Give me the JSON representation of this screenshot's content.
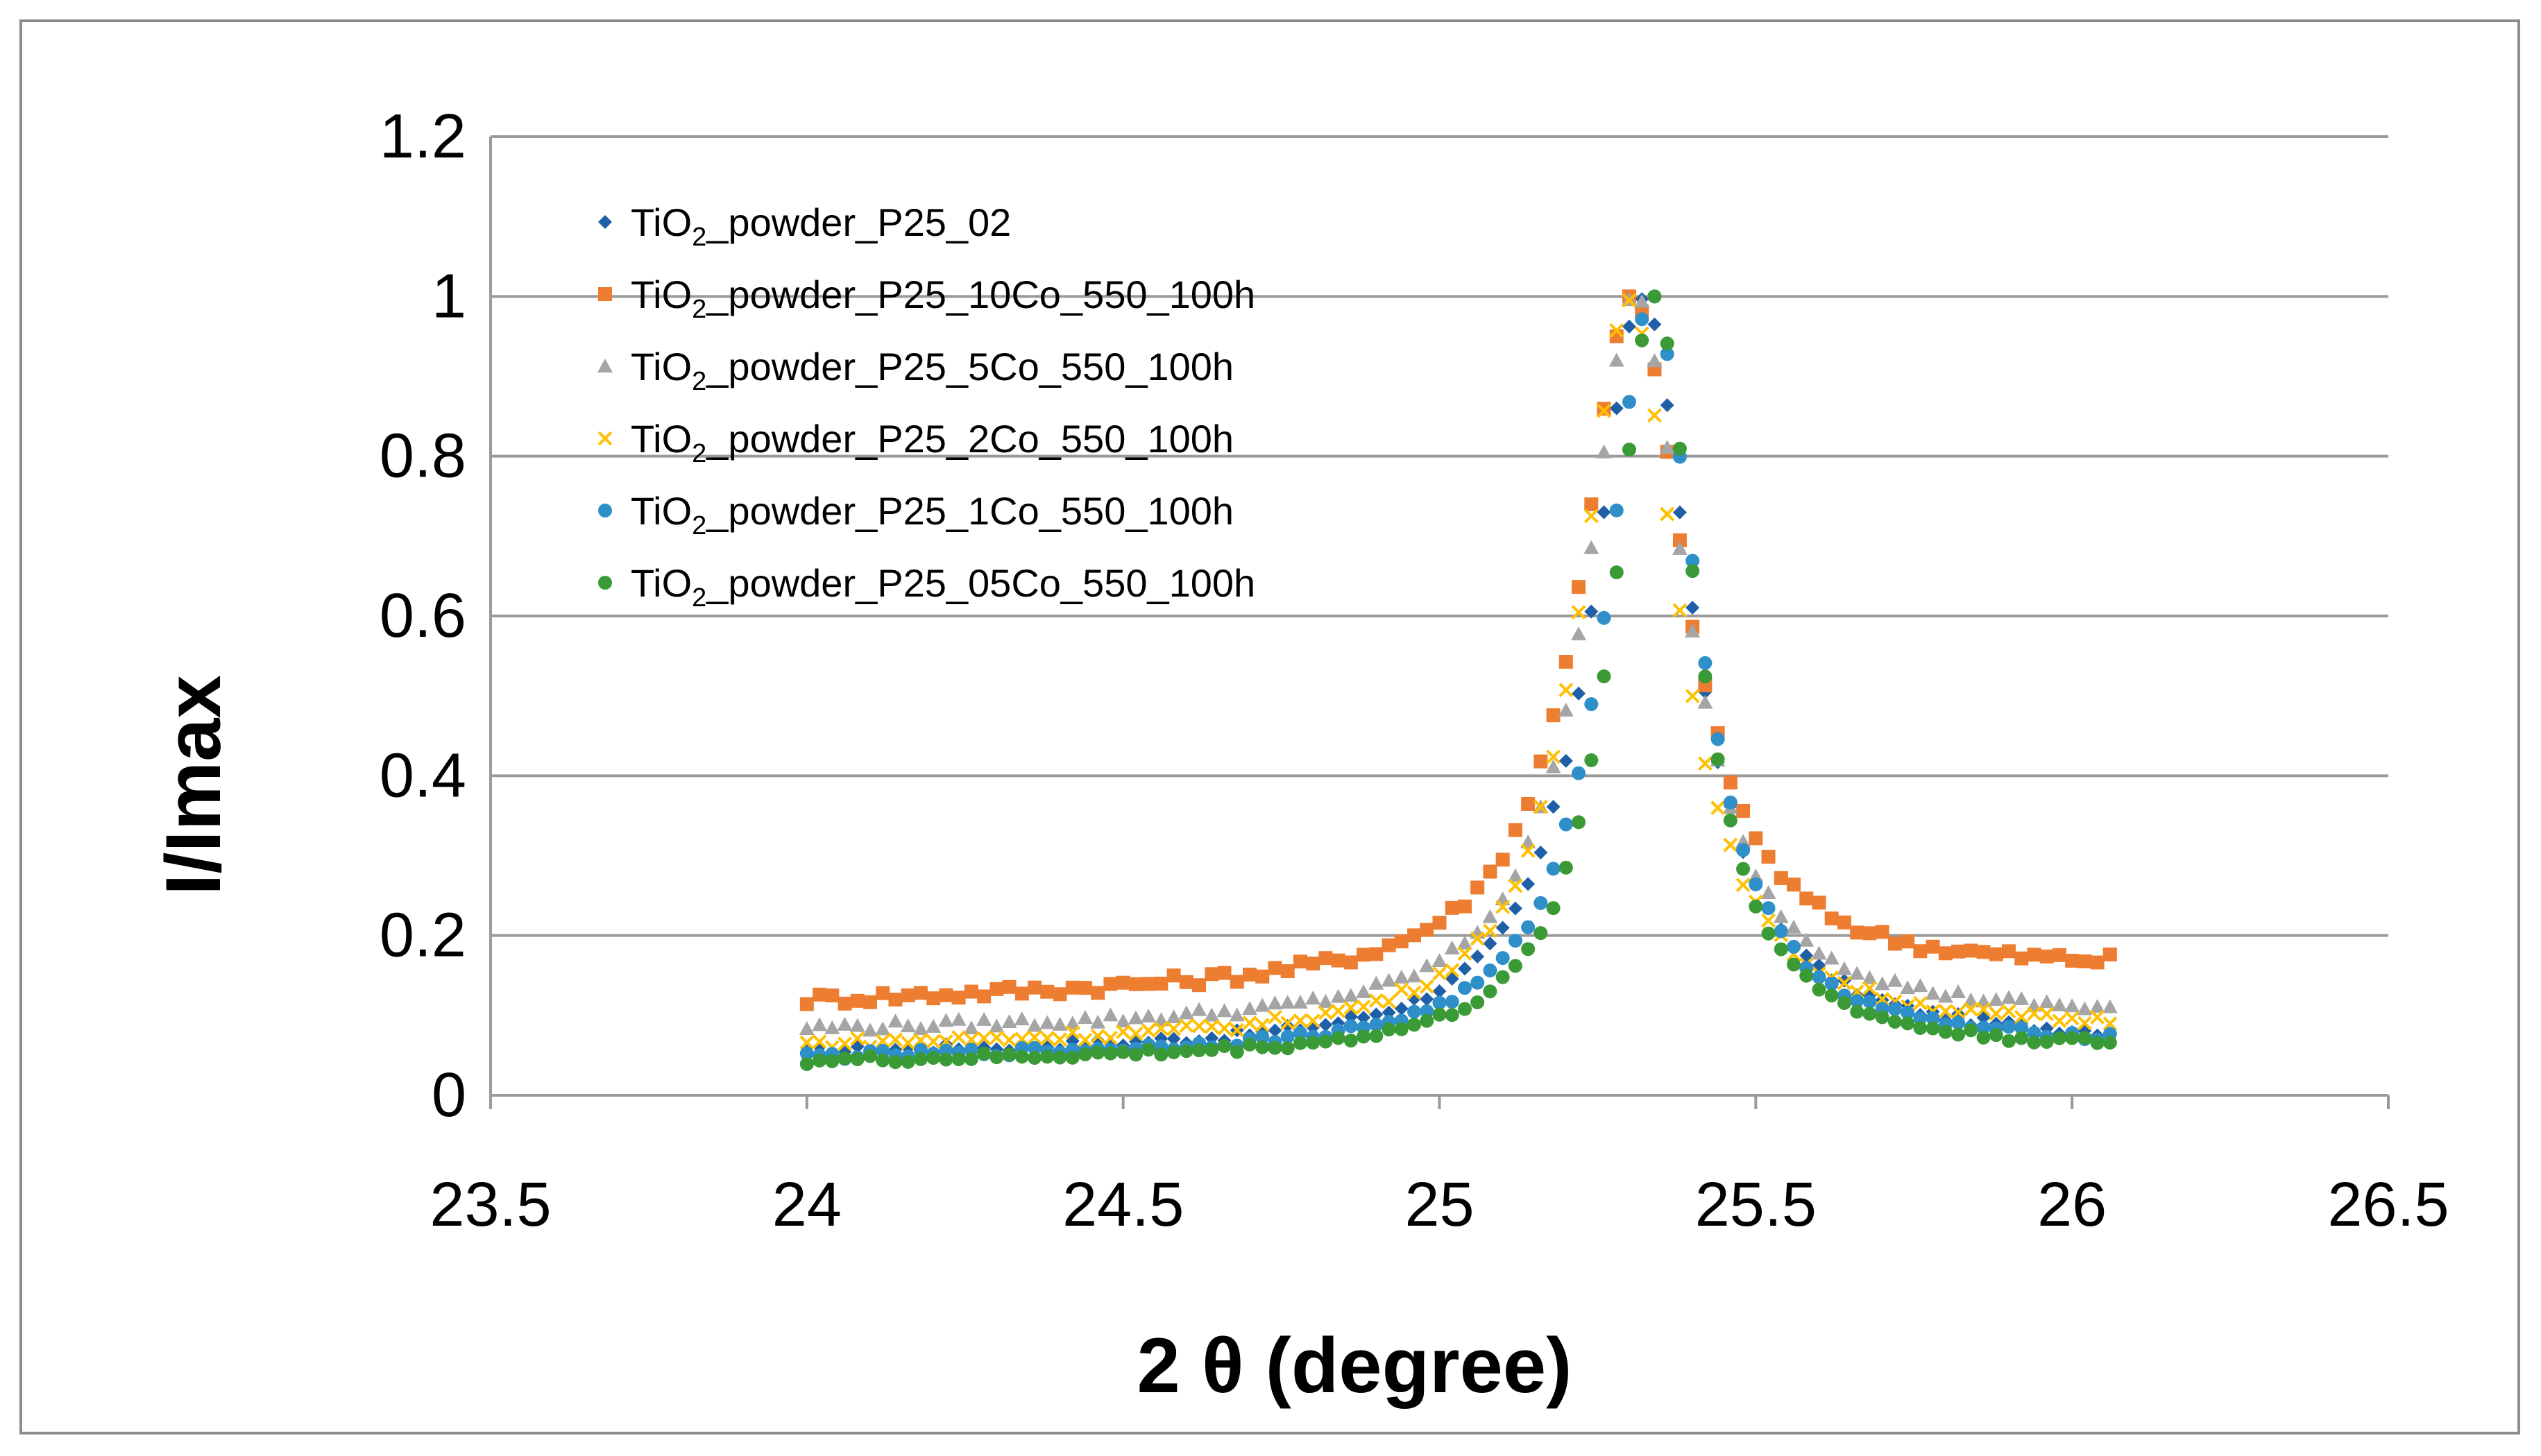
{
  "chart_data": {
    "type": "scatter",
    "title": "",
    "xlabel": "2 θ (degree)",
    "ylabel": "I/Imax",
    "xlim": [
      23.5,
      26.5
    ],
    "ylim": [
      0,
      1.2
    ],
    "xticks": [
      "23.5",
      "24",
      "24.5",
      "25",
      "25.5",
      "26",
      "26.5"
    ],
    "yticks": [
      "0",
      "0.2",
      "0.4",
      "0.6",
      "0.8",
      "1",
      "1.2"
    ],
    "grid": "horizontal",
    "legend_position": "top-left",
    "x_range": [
      24.0,
      26.07
    ],
    "peak_x": 25.32,
    "series": [
      {
        "name": "TiO2_powder_P25_02",
        "name_main": "TiO",
        "name_sub": "2",
        "name_rest": "_powder_P25_02",
        "marker": "diamond",
        "color": "#1f5fa8",
        "baseline_left": 0.05,
        "baseline_right": 0.065,
        "peak_center": 25.32,
        "peak_width": 0.095,
        "noise": 0.006
      },
      {
        "name": "TiO2_powder_P25_10Co_550_100h",
        "name_main": "TiO",
        "name_sub": "2",
        "name_rest": "_powder_P25_10Co_550_100h",
        "marker": "square",
        "color": "#ed7d31",
        "baseline_left": 0.115,
        "baseline_right": 0.155,
        "peak_center": 25.305,
        "peak_width": 0.1,
        "noise": 0.008
      },
      {
        "name": "TiO2_powder_P25_5Co_550_100h",
        "name_main": "TiO",
        "name_sub": "2",
        "name_rest": "_powder_P25_5Co_550_100h",
        "marker": "triangle",
        "color": "#a5a5a5",
        "baseline_left": 0.08,
        "baseline_right": 0.095,
        "peak_center": 25.31,
        "peak_width": 0.097,
        "noise": 0.006
      },
      {
        "name": "TiO2_powder_P25_2Co_550_100h",
        "name_main": "TiO",
        "name_sub": "2",
        "name_rest": "_powder_P25_2Co_550_100h",
        "marker": "x",
        "color": "#ffc000",
        "baseline_left": 0.06,
        "baseline_right": 0.08,
        "peak_center": 25.3,
        "peak_width": 0.093,
        "noise": 0.006
      },
      {
        "name": "TiO2_powder_P25_1Co_550_100h",
        "name_main": "TiO",
        "name_sub": "2",
        "name_rest": "_powder_P25_1Co_550_100h",
        "marker": "circle",
        "color": "#2e8fc9",
        "baseline_left": 0.045,
        "baseline_right": 0.06,
        "peak_center": 25.335,
        "peak_width": 0.088,
        "noise": 0.005
      },
      {
        "name": "TiO2_powder_P25_05Co_550_100h",
        "name_main": "TiO",
        "name_sub": "2",
        "name_rest": "_powder_P25_05Co_550_100h",
        "marker": "circle",
        "color": "#3a9a35",
        "baseline_left": 0.04,
        "baseline_right": 0.055,
        "peak_center": 25.34,
        "peak_width": 0.08,
        "noise": 0.005
      }
    ]
  }
}
